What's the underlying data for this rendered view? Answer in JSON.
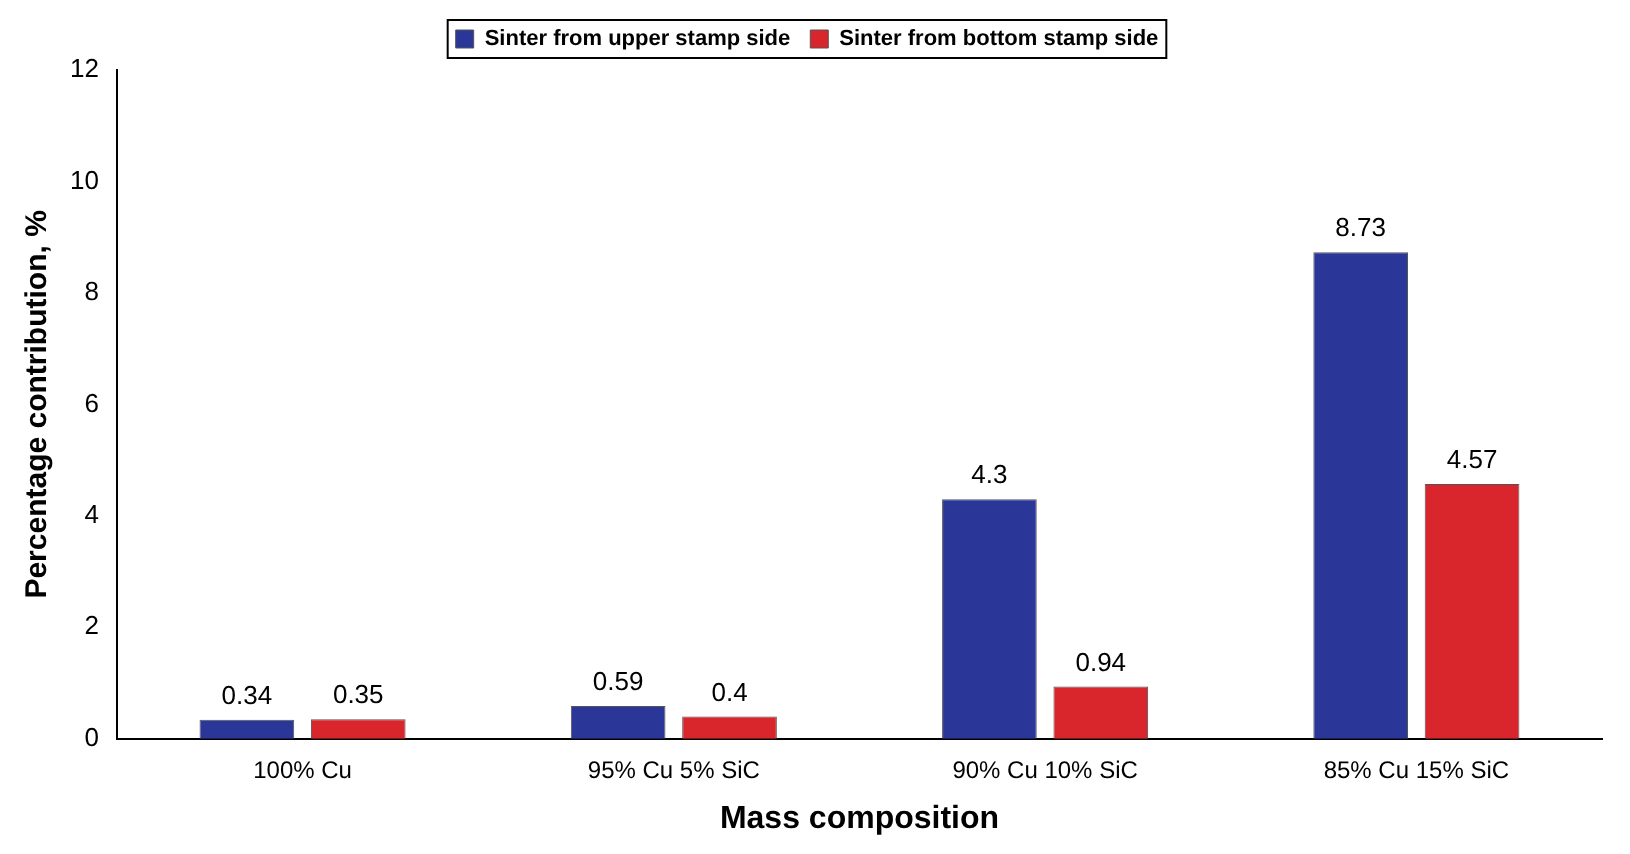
{
  "chart_data": {
    "type": "bar",
    "categories": [
      "100% Cu",
      "95% Cu 5% SiC",
      "90% Cu 10% SiC",
      "85% Cu 15% SiC"
    ],
    "series": [
      {
        "name": "Sinter from upper stamp side",
        "color": "#2b3699",
        "values": [
          0.34,
          0.59,
          4.3,
          8.73
        ]
      },
      {
        "name": "Sinter from bottom stamp side",
        "color": "#d9262c",
        "values": [
          0.35,
          0.4,
          0.94,
          4.57
        ]
      }
    ],
    "xlabel": "Mass composition",
    "ylabel": "Percentage contribution, %",
    "ylim": [
      0,
      12
    ],
    "yticks": [
      0,
      2,
      4,
      6,
      8,
      10,
      12
    ],
    "grid": false,
    "legend": "top",
    "data_labels": true
  }
}
